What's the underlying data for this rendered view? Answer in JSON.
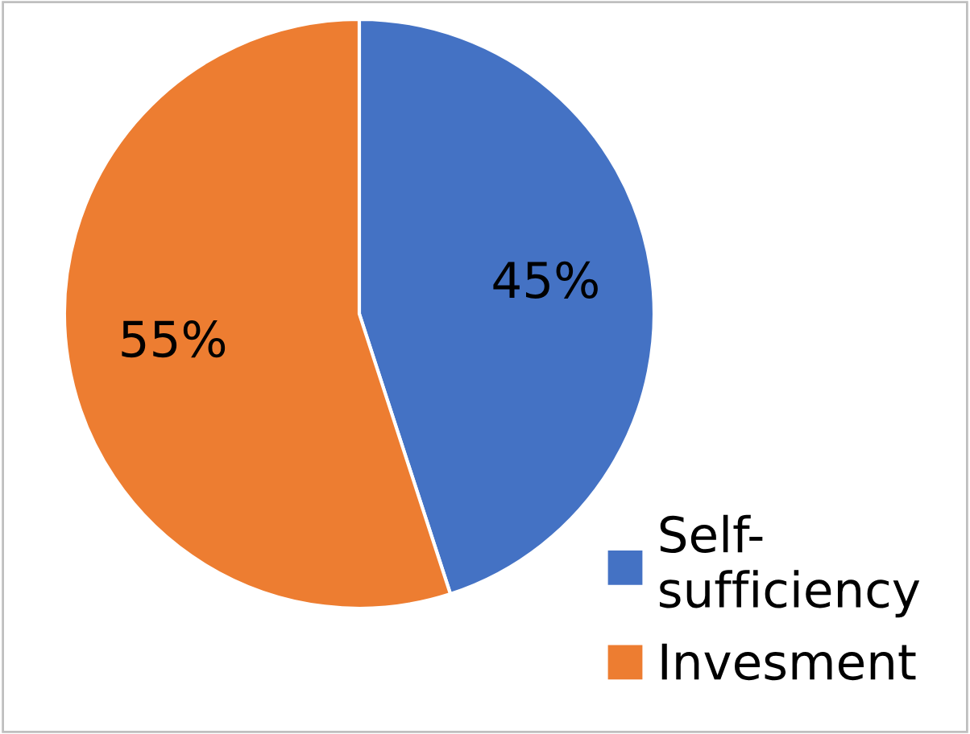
{
  "chart_data": {
    "type": "pie",
    "categories": [
      "Self-sufficiency",
      "Invesment"
    ],
    "values": [
      45,
      55
    ],
    "colors": [
      "#4472c4",
      "#ed7d31"
    ],
    "value_labels": [
      "45%",
      "55%"
    ],
    "legend": "bottom right"
  }
}
